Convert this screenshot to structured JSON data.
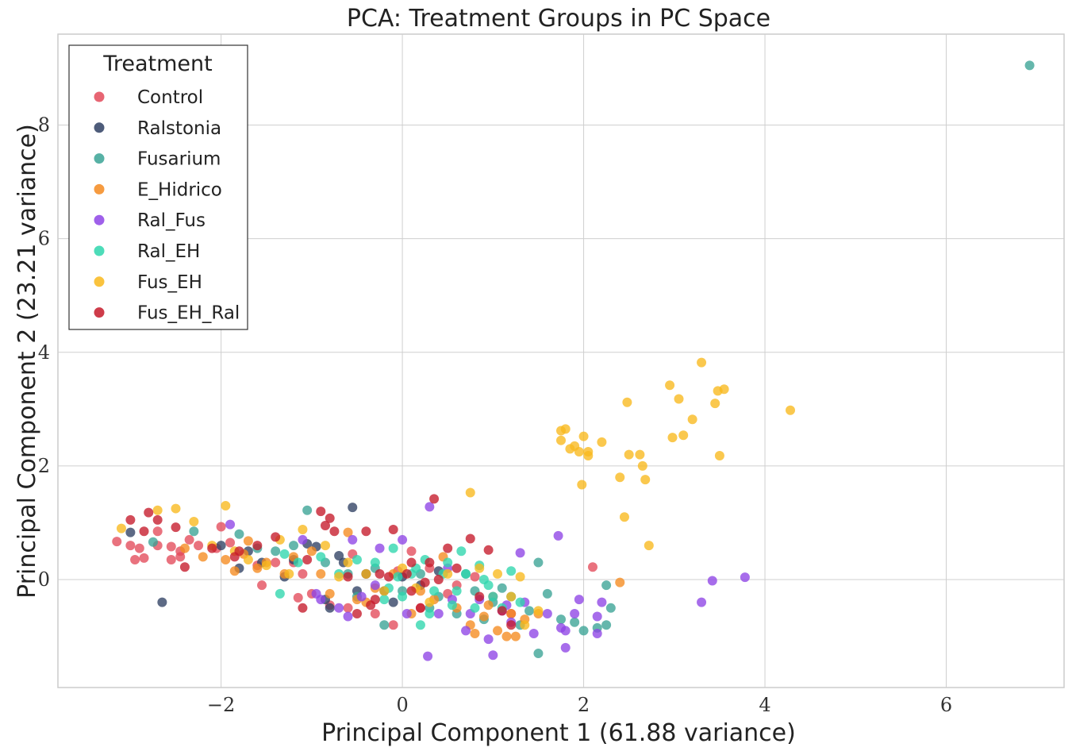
{
  "chart_data": {
    "type": "scatter",
    "title": "PCA: Treatment Groups in PC Space",
    "xlabel": "Principal Component 1 (61.88 variance)",
    "ylabel": "Principal Component 2 (23.21 variance)",
    "xlim": [
      -3.8,
      7.3
    ],
    "ylim": [
      -1.9,
      9.6
    ],
    "xticks": [
      -2,
      0,
      2,
      4,
      6
    ],
    "yticks": [
      0,
      2,
      4,
      6,
      8
    ],
    "xtick_labels": [
      "−2",
      "0",
      "2",
      "4",
      "6"
    ],
    "ytick_labels": [
      "0",
      "2",
      "4",
      "6",
      "8"
    ],
    "grid": true,
    "legend": {
      "title": "Treatment",
      "position": "upper-left"
    },
    "series": [
      {
        "name": "Control",
        "color": "#e34a5a",
        "points": [
          [
            -3.15,
            0.67
          ],
          [
            -3.0,
            0.6
          ],
          [
            -2.95,
            0.35
          ],
          [
            -2.85,
            0.38
          ],
          [
            -2.9,
            0.55
          ],
          [
            -2.7,
            0.6
          ],
          [
            -2.55,
            0.58
          ],
          [
            -2.45,
            0.5
          ],
          [
            -2.35,
            0.7
          ],
          [
            -2.25,
            0.6
          ],
          [
            -2.05,
            0.55
          ],
          [
            -1.9,
            0.65
          ],
          [
            -1.6,
            0.25
          ],
          [
            -1.55,
            -0.1
          ],
          [
            -1.2,
            0.3
          ],
          [
            -1.1,
            0.1
          ],
          [
            -1.15,
            -0.32
          ],
          [
            -1.0,
            -0.25
          ],
          [
            -0.8,
            -0.45
          ],
          [
            -0.6,
            -0.5
          ],
          [
            -0.55,
            0.45
          ],
          [
            -0.3,
            -0.6
          ],
          [
            -0.1,
            -0.8
          ],
          [
            -0.05,
            0.15
          ],
          [
            0.1,
            0.5
          ],
          [
            0.3,
            0.2
          ],
          [
            0.5,
            -0.25
          ],
          [
            0.8,
            0.05
          ],
          [
            1.0,
            -0.3
          ],
          [
            2.1,
            0.22
          ],
          [
            -2.7,
            0.85
          ],
          [
            -2.55,
            0.35
          ],
          [
            -2.45,
            0.4
          ],
          [
            -2.0,
            0.93
          ],
          [
            -1.4,
            0.3
          ],
          [
            -0.4,
            0.1
          ],
          [
            0.2,
            -0.5
          ],
          [
            0.6,
            -0.1
          ],
          [
            1.2,
            -0.6
          ]
        ]
      },
      {
        "name": "Ralstonia",
        "color": "#2f4063",
        "points": [
          [
            -2.65,
            -0.4
          ],
          [
            -3.0,
            0.83
          ],
          [
            -2.0,
            0.6
          ],
          [
            -1.7,
            0.5
          ],
          [
            -1.55,
            0.3
          ],
          [
            -1.2,
            0.35
          ],
          [
            -1.05,
            0.63
          ],
          [
            -0.95,
            0.58
          ],
          [
            -0.85,
            -0.35
          ],
          [
            -0.8,
            -0.5
          ],
          [
            -0.65,
            0.3
          ],
          [
            -0.55,
            1.27
          ],
          [
            -0.4,
            0.1
          ],
          [
            -0.2,
            -0.2
          ],
          [
            0.0,
            0.05
          ],
          [
            0.2,
            -0.1
          ],
          [
            0.4,
            0.15
          ],
          [
            -1.8,
            0.2
          ],
          [
            -1.3,
            0.05
          ],
          [
            -0.7,
            0.42
          ],
          [
            -0.5,
            -0.2
          ],
          [
            -0.1,
            -0.4
          ]
        ]
      },
      {
        "name": "Fusarium",
        "color": "#3aa395",
        "points": [
          [
            6.92,
            9.05
          ],
          [
            -2.75,
            0.66
          ],
          [
            -2.3,
            0.85
          ],
          [
            -1.8,
            0.8
          ],
          [
            -1.6,
            0.55
          ],
          [
            -1.4,
            0.5
          ],
          [
            -1.2,
            0.6
          ],
          [
            -1.05,
            1.22
          ],
          [
            -0.85,
            0.3
          ],
          [
            -0.6,
            0.1
          ],
          [
            -0.3,
            0.2
          ],
          [
            -0.2,
            -0.8
          ],
          [
            0.0,
            -0.2
          ],
          [
            0.2,
            0.1
          ],
          [
            0.4,
            -0.3
          ],
          [
            0.6,
            -0.6
          ],
          [
            0.8,
            -0.2
          ],
          [
            1.0,
            -0.4
          ],
          [
            1.2,
            -0.3
          ],
          [
            1.3,
            -0.8
          ],
          [
            1.5,
            0.3
          ],
          [
            1.5,
            -1.3
          ],
          [
            1.6,
            -0.25
          ],
          [
            1.75,
            -0.7
          ],
          [
            1.9,
            -0.75
          ],
          [
            2.0,
            -0.9
          ],
          [
            2.15,
            -0.85
          ],
          [
            2.25,
            -0.1
          ],
          [
            2.3,
            -0.5
          ],
          [
            2.25,
            -0.8
          ],
          [
            1.1,
            -0.15
          ],
          [
            0.7,
            0.1
          ],
          [
            0.3,
            -0.5
          ],
          [
            -0.5,
            -0.3
          ],
          [
            1.4,
            -0.55
          ],
          [
            0.9,
            -0.7
          ]
        ]
      },
      {
        "name": "E_Hidrico",
        "color": "#f58a1f",
        "points": [
          [
            -2.4,
            0.55
          ],
          [
            -2.2,
            0.4
          ],
          [
            -1.95,
            0.35
          ],
          [
            -1.85,
            0.15
          ],
          [
            -1.7,
            0.68
          ],
          [
            -1.6,
            0.2
          ],
          [
            -1.5,
            0.3
          ],
          [
            -1.3,
            0.1
          ],
          [
            -1.0,
            0.5
          ],
          [
            -0.8,
            -0.25
          ],
          [
            -0.6,
            0.83
          ],
          [
            -0.5,
            -0.35
          ],
          [
            -0.3,
            -0.15
          ],
          [
            -0.1,
            0.1
          ],
          [
            0.2,
            -0.2
          ],
          [
            0.45,
            0.4
          ],
          [
            0.6,
            -0.5
          ],
          [
            0.75,
            -0.8
          ],
          [
            0.8,
            -0.95
          ],
          [
            0.95,
            -0.45
          ],
          [
            1.05,
            -0.9
          ],
          [
            1.2,
            -0.6
          ],
          [
            1.25,
            -1.0
          ],
          [
            1.35,
            -0.7
          ],
          [
            1.5,
            -0.6
          ],
          [
            2.4,
            -0.05
          ],
          [
            -1.75,
            0.45
          ],
          [
            -1.2,
            0.4
          ],
          [
            -0.9,
            0.1
          ],
          [
            -0.4,
            -0.4
          ],
          [
            0.1,
            -0.6
          ],
          [
            0.35,
            -0.35
          ],
          [
            0.9,
            -0.65
          ],
          [
            1.15,
            -1.0
          ]
        ]
      },
      {
        "name": "Ral_Fus",
        "color": "#8e44e6",
        "points": [
          [
            -1.9,
            0.97
          ],
          [
            -1.1,
            0.7
          ],
          [
            -0.95,
            -0.25
          ],
          [
            -0.9,
            -0.35
          ],
          [
            -0.7,
            -0.5
          ],
          [
            -0.6,
            -0.65
          ],
          [
            -0.55,
            0.7
          ],
          [
            -0.45,
            -0.3
          ],
          [
            -0.25,
            0.55
          ],
          [
            0.0,
            0.7
          ],
          [
            0.05,
            -0.6
          ],
          [
            0.3,
            1.28
          ],
          [
            0.4,
            -0.6
          ],
          [
            0.5,
            0.2
          ],
          [
            0.7,
            -0.9
          ],
          [
            0.75,
            -0.6
          ],
          [
            0.85,
            -0.35
          ],
          [
            0.95,
            -1.05
          ],
          [
            1.0,
            -1.33
          ],
          [
            1.1,
            -0.55
          ],
          [
            1.2,
            -0.75
          ],
          [
            1.3,
            0.47
          ],
          [
            1.35,
            -0.4
          ],
          [
            1.45,
            -0.95
          ],
          [
            1.6,
            -0.6
          ],
          [
            1.72,
            0.77
          ],
          [
            1.8,
            -0.9
          ],
          [
            1.8,
            -1.2
          ],
          [
            1.9,
            -0.6
          ],
          [
            1.95,
            -0.35
          ],
          [
            2.15,
            -0.65
          ],
          [
            2.2,
            -0.4
          ],
          [
            2.15,
            -0.95
          ],
          [
            3.3,
            -0.4
          ],
          [
            3.42,
            -0.02
          ],
          [
            3.78,
            0.04
          ],
          [
            0.28,
            -1.35
          ],
          [
            0.55,
            -0.35
          ],
          [
            1.15,
            -0.45
          ],
          [
            -0.3,
            -0.1
          ],
          [
            1.75,
            -0.85
          ]
        ]
      },
      {
        "name": "Ral_EH",
        "color": "#2ed6ad",
        "points": [
          [
            -1.35,
            -0.25
          ],
          [
            -1.3,
            0.45
          ],
          [
            -1.15,
            0.3
          ],
          [
            -0.9,
            0.4
          ],
          [
            -0.7,
            0.1
          ],
          [
            -0.5,
            0.35
          ],
          [
            -0.3,
            0.3
          ],
          [
            -0.2,
            -0.35
          ],
          [
            -0.1,
            0.55
          ],
          [
            0.0,
            -0.3
          ],
          [
            0.1,
            0.1
          ],
          [
            0.2,
            -0.8
          ],
          [
            0.25,
            0.35
          ],
          [
            0.35,
            -0.2
          ],
          [
            0.45,
            0.1
          ],
          [
            0.55,
            -0.45
          ],
          [
            0.65,
            0.5
          ],
          [
            0.7,
            0.1
          ],
          [
            0.8,
            -0.5
          ],
          [
            0.85,
            0.25
          ],
          [
            0.95,
            -0.1
          ],
          [
            1.0,
            -0.3
          ],
          [
            1.1,
            -0.5
          ],
          [
            1.2,
            0.15
          ],
          [
            1.3,
            -0.4
          ],
          [
            0.15,
            0.2
          ],
          [
            -0.15,
            -0.15
          ],
          [
            0.5,
            0.3
          ],
          [
            0.3,
            -0.6
          ],
          [
            0.6,
            -0.2
          ],
          [
            0.9,
            0.0
          ],
          [
            -0.05,
            0.05
          ]
        ]
      },
      {
        "name": "Fus_EH",
        "color": "#f9b91c",
        "points": [
          [
            -3.1,
            0.9
          ],
          [
            -2.7,
            1.22
          ],
          [
            -2.5,
            1.25
          ],
          [
            -2.3,
            1.02
          ],
          [
            -2.1,
            0.6
          ],
          [
            -1.95,
            1.3
          ],
          [
            -1.85,
            0.5
          ],
          [
            -1.7,
            0.35
          ],
          [
            -1.5,
            0.25
          ],
          [
            -1.35,
            0.7
          ],
          [
            -1.1,
            0.88
          ],
          [
            -0.85,
            0.6
          ],
          [
            -0.6,
            0.3
          ],
          [
            -0.4,
            0.1
          ],
          [
            -0.2,
            -0.2
          ],
          [
            0.0,
            0.2
          ],
          [
            0.3,
            -0.4
          ],
          [
            0.5,
            0.1
          ],
          [
            0.75,
            1.53
          ],
          [
            0.85,
            0.2
          ],
          [
            1.05,
            0.1
          ],
          [
            1.2,
            -0.3
          ],
          [
            1.3,
            0.05
          ],
          [
            1.35,
            -0.8
          ],
          [
            1.5,
            -0.55
          ],
          [
            1.75,
            2.62
          ],
          [
            1.75,
            2.45
          ],
          [
            1.8,
            2.65
          ],
          [
            1.85,
            2.3
          ],
          [
            1.9,
            2.35
          ],
          [
            1.95,
            2.25
          ],
          [
            2.0,
            2.52
          ],
          [
            2.05,
            2.25
          ],
          [
            2.05,
            2.18
          ],
          [
            1.98,
            1.67
          ],
          [
            2.2,
            2.42
          ],
          [
            2.4,
            1.8
          ],
          [
            2.45,
            1.1
          ],
          [
            2.48,
            3.12
          ],
          [
            2.5,
            2.2
          ],
          [
            2.62,
            2.2
          ],
          [
            2.65,
            2.0
          ],
          [
            2.68,
            1.76
          ],
          [
            2.72,
            0.6
          ],
          [
            2.95,
            3.42
          ],
          [
            2.98,
            2.5
          ],
          [
            3.05,
            3.18
          ],
          [
            3.1,
            2.54
          ],
          [
            3.2,
            2.82
          ],
          [
            3.3,
            3.82
          ],
          [
            3.45,
            3.1
          ],
          [
            3.5,
            2.18
          ],
          [
            3.55,
            3.35
          ],
          [
            3.48,
            3.32
          ],
          [
            4.28,
            2.98
          ],
          [
            -0.7,
            0.05
          ],
          [
            0.15,
            -0.15
          ],
          [
            -1.25,
            0.1
          ]
        ]
      },
      {
        "name": "Fus_EH_Ral",
        "color": "#c51a2a",
        "points": [
          [
            -3.0,
            1.05
          ],
          [
            -2.85,
            0.85
          ],
          [
            -2.8,
            1.18
          ],
          [
            -2.7,
            1.05
          ],
          [
            -2.5,
            0.92
          ],
          [
            -2.4,
            0.22
          ],
          [
            -2.1,
            0.55
          ],
          [
            -1.85,
            0.4
          ],
          [
            -1.8,
            0.5
          ],
          [
            -1.6,
            0.6
          ],
          [
            -1.4,
            0.75
          ],
          [
            -1.1,
            -0.5
          ],
          [
            -1.05,
            0.35
          ],
          [
            -0.9,
            1.2
          ],
          [
            -0.85,
            0.95
          ],
          [
            -0.8,
            1.08
          ],
          [
            -0.75,
            0.85
          ],
          [
            -0.6,
            0.05
          ],
          [
            -0.5,
            -0.6
          ],
          [
            -0.4,
            0.85
          ],
          [
            -0.35,
            -0.45
          ],
          [
            -0.25,
            0.1
          ],
          [
            -0.1,
            0.88
          ],
          [
            0.05,
            0.1
          ],
          [
            0.1,
            -0.2
          ],
          [
            0.2,
            -0.5
          ],
          [
            0.3,
            0.3
          ],
          [
            0.35,
            1.42
          ],
          [
            0.4,
            0.0
          ],
          [
            0.5,
            0.55
          ],
          [
            0.6,
            0.2
          ],
          [
            0.75,
            0.72
          ],
          [
            0.85,
            -0.3
          ],
          [
            0.95,
            0.52
          ],
          [
            1.1,
            -0.55
          ],
          [
            1.2,
            -0.8
          ],
          [
            -0.3,
            -0.35
          ],
          [
            0.1,
            0.3
          ],
          [
            -0.15,
            0.05
          ],
          [
            0.25,
            -0.05
          ]
        ]
      }
    ]
  }
}
